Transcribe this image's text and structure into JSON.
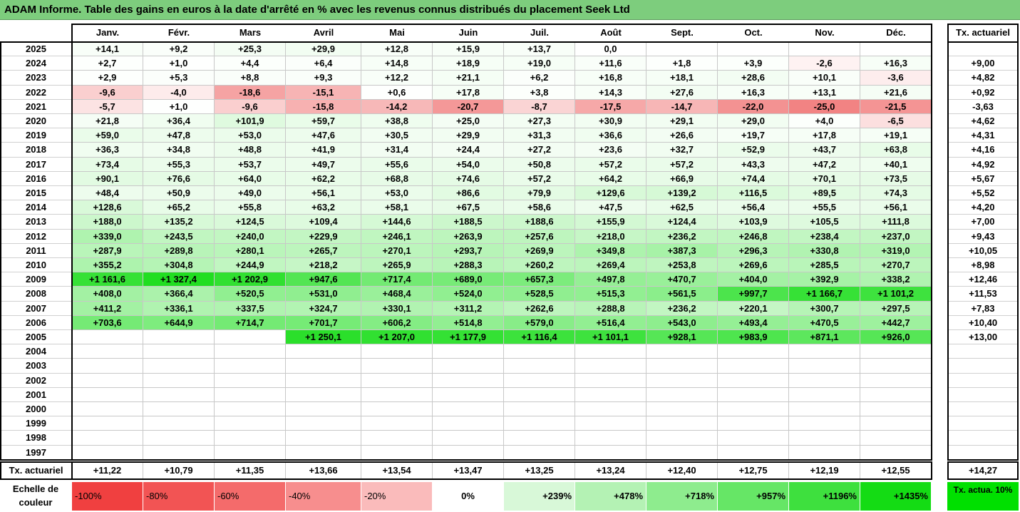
{
  "title": "ADAM Informe. Table des gains en euros à la date d'arrêté en % avec les revenus connus distribués du placement Seek Ltd",
  "months": [
    "Janv.",
    "Févr.",
    "Mars",
    "Avril",
    "Mai",
    "Juin",
    "Juil.",
    "Août",
    "Sept.",
    "Oct.",
    "Nov.",
    "Déc."
  ],
  "tx_header": "Tx. actuariel",
  "rows": [
    {
      "year": "2025",
      "values": [
        "+14,1",
        "+9,2",
        "+25,3",
        "+29,9",
        "+12,8",
        "+15,9",
        "+13,7",
        "0,0",
        "",
        "",
        "",
        ""
      ],
      "tx": ""
    },
    {
      "year": "2024",
      "values": [
        "+2,7",
        "+1,0",
        "+4,4",
        "+6,4",
        "+14,8",
        "+18,9",
        "+19,0",
        "+11,6",
        "+1,8",
        "+3,9",
        "-2,6",
        "+16,3"
      ],
      "tx": "+9,00"
    },
    {
      "year": "2023",
      "values": [
        "+2,9",
        "+5,3",
        "+8,8",
        "+9,3",
        "+12,2",
        "+21,1",
        "+6,2",
        "+16,8",
        "+18,1",
        "+28,6",
        "+10,1",
        "-3,6"
      ],
      "tx": "+4,82"
    },
    {
      "year": "2022",
      "values": [
        "-9,6",
        "-4,0",
        "-18,6",
        "-15,1",
        "+0,6",
        "+17,8",
        "+3,8",
        "+14,3",
        "+27,6",
        "+16,3",
        "+13,1",
        "+21,6"
      ],
      "tx": "+0,92"
    },
    {
      "year": "2021",
      "values": [
        "-5,7",
        "+1,0",
        "-9,6",
        "-15,8",
        "-14,2",
        "-20,7",
        "-8,7",
        "-17,5",
        "-14,7",
        "-22,0",
        "-25,0",
        "-21,5"
      ],
      "tx": "-3,63"
    },
    {
      "year": "2020",
      "values": [
        "+21,8",
        "+36,4",
        "+101,9",
        "+59,7",
        "+38,8",
        "+25,0",
        "+27,3",
        "+30,9",
        "+29,1",
        "+29,0",
        "+4,0",
        "-6,5"
      ],
      "tx": "+4,62"
    },
    {
      "year": "2019",
      "values": [
        "+59,0",
        "+47,8",
        "+53,0",
        "+47,6",
        "+30,5",
        "+29,9",
        "+31,3",
        "+36,6",
        "+26,6",
        "+19,7",
        "+17,8",
        "+19,1"
      ],
      "tx": "+4,31"
    },
    {
      "year": "2018",
      "values": [
        "+36,3",
        "+34,8",
        "+48,8",
        "+41,9",
        "+31,4",
        "+24,4",
        "+27,2",
        "+23,6",
        "+32,7",
        "+52,9",
        "+43,7",
        "+63,8"
      ],
      "tx": "+4,16"
    },
    {
      "year": "2017",
      "values": [
        "+73,4",
        "+55,3",
        "+53,7",
        "+49,7",
        "+55,6",
        "+54,0",
        "+50,8",
        "+57,2",
        "+57,2",
        "+43,3",
        "+47,2",
        "+40,1"
      ],
      "tx": "+4,92"
    },
    {
      "year": "2016",
      "values": [
        "+90,1",
        "+76,6",
        "+64,0",
        "+62,2",
        "+68,8",
        "+74,6",
        "+57,2",
        "+64,2",
        "+66,9",
        "+74,4",
        "+70,1",
        "+73,5"
      ],
      "tx": "+5,67"
    },
    {
      "year": "2015",
      "values": [
        "+48,4",
        "+50,9",
        "+49,0",
        "+56,1",
        "+53,0",
        "+86,6",
        "+79,9",
        "+129,6",
        "+139,2",
        "+116,5",
        "+89,5",
        "+74,3"
      ],
      "tx": "+5,52"
    },
    {
      "year": "2014",
      "values": [
        "+128,6",
        "+65,2",
        "+55,8",
        "+63,2",
        "+58,1",
        "+67,5",
        "+58,6",
        "+47,5",
        "+62,5",
        "+56,4",
        "+55,5",
        "+56,1"
      ],
      "tx": "+4,20"
    },
    {
      "year": "2013",
      "values": [
        "+188,0",
        "+135,2",
        "+124,5",
        "+109,4",
        "+144,6",
        "+188,5",
        "+188,6",
        "+155,9",
        "+124,4",
        "+103,9",
        "+105,5",
        "+111,8"
      ],
      "tx": "+7,00"
    },
    {
      "year": "2012",
      "values": [
        "+339,0",
        "+243,5",
        "+240,0",
        "+229,9",
        "+246,1",
        "+263,9",
        "+257,6",
        "+218,0",
        "+236,2",
        "+246,8",
        "+238,4",
        "+237,0"
      ],
      "tx": "+9,43"
    },
    {
      "year": "2011",
      "values": [
        "+287,9",
        "+289,8",
        "+280,1",
        "+265,7",
        "+270,1",
        "+293,7",
        "+269,9",
        "+349,8",
        "+387,3",
        "+296,3",
        "+330,8",
        "+319,0"
      ],
      "tx": "+10,05"
    },
    {
      "year": "2010",
      "values": [
        "+355,2",
        "+304,8",
        "+244,9",
        "+218,2",
        "+265,9",
        "+288,3",
        "+260,2",
        "+269,4",
        "+253,8",
        "+269,6",
        "+285,5",
        "+270,7"
      ],
      "tx": "+8,98"
    },
    {
      "year": "2009",
      "values": [
        "+1 161,6",
        "+1 327,4",
        "+1 202,9",
        "+947,6",
        "+717,4",
        "+689,0",
        "+657,3",
        "+497,8",
        "+470,7",
        "+404,0",
        "+392,9",
        "+338,2"
      ],
      "tx": "+12,46"
    },
    {
      "year": "2008",
      "values": [
        "+408,0",
        "+366,4",
        "+520,5",
        "+531,0",
        "+468,4",
        "+524,0",
        "+528,5",
        "+515,3",
        "+561,5",
        "+997,7",
        "+1 166,7",
        "+1 101,2"
      ],
      "tx": "+11,53"
    },
    {
      "year": "2007",
      "values": [
        "+411,2",
        "+336,1",
        "+337,5",
        "+324,7",
        "+330,1",
        "+311,2",
        "+262,6",
        "+288,8",
        "+236,2",
        "+220,1",
        "+300,7",
        "+297,5"
      ],
      "tx": "+7,83"
    },
    {
      "year": "2006",
      "values": [
        "+703,6",
        "+644,9",
        "+714,7",
        "+701,7",
        "+606,2",
        "+514,8",
        "+579,0",
        "+516,4",
        "+543,0",
        "+493,4",
        "+470,5",
        "+442,7"
      ],
      "tx": "+10,40"
    },
    {
      "year": "2005",
      "values": [
        "",
        "",
        "",
        "+1 250,1",
        "+1 207,0",
        "+1 177,9",
        "+1 116,4",
        "+1 101,1",
        "+928,1",
        "+983,9",
        "+871,1",
        "+926,0"
      ],
      "tx": "+13,00"
    },
    {
      "year": "2004",
      "values": [
        "",
        "",
        "",
        "",
        "",
        "",
        "",
        "",
        "",
        "",
        "",
        ""
      ],
      "tx": ""
    },
    {
      "year": "2003",
      "values": [
        "",
        "",
        "",
        "",
        "",
        "",
        "",
        "",
        "",
        "",
        "",
        ""
      ],
      "tx": ""
    },
    {
      "year": "2002",
      "values": [
        "",
        "",
        "",
        "",
        "",
        "",
        "",
        "",
        "",
        "",
        "",
        ""
      ],
      "tx": ""
    },
    {
      "year": "2001",
      "values": [
        "",
        "",
        "",
        "",
        "",
        "",
        "",
        "",
        "",
        "",
        "",
        ""
      ],
      "tx": ""
    },
    {
      "year": "2000",
      "values": [
        "",
        "",
        "",
        "",
        "",
        "",
        "",
        "",
        "",
        "",
        "",
        ""
      ],
      "tx": ""
    },
    {
      "year": "1999",
      "values": [
        "",
        "",
        "",
        "",
        "",
        "",
        "",
        "",
        "",
        "",
        "",
        ""
      ],
      "tx": ""
    },
    {
      "year": "1998",
      "values": [
        "",
        "",
        "",
        "",
        "",
        "",
        "",
        "",
        "",
        "",
        "",
        ""
      ],
      "tx": ""
    },
    {
      "year": "1997",
      "values": [
        "",
        "",
        "",
        "",
        "",
        "",
        "",
        "",
        "",
        "",
        "",
        ""
      ],
      "tx": ""
    }
  ],
  "footer": {
    "label": "Tx. actuariel",
    "values": [
      "+11,22",
      "+10,79",
      "+11,35",
      "+13,66",
      "+13,54",
      "+13,47",
      "+13,25",
      "+13,24",
      "+12,40",
      "+12,75",
      "+12,19",
      "+12,55"
    ],
    "total": "+14,27"
  },
  "legend": {
    "label": "Echelle de couleur",
    "items": [
      {
        "text": "-100%",
        "color": "#f04040",
        "align": "left"
      },
      {
        "text": "-80%",
        "color": "#f25454",
        "align": "left"
      },
      {
        "text": "-60%",
        "color": "#f46b6b",
        "align": "left"
      },
      {
        "text": "-40%",
        "color": "#f78e8e",
        "align": "left"
      },
      {
        "text": "-20%",
        "color": "#fabbbb",
        "align": "left"
      },
      {
        "text": "0%",
        "color": "#ffffff",
        "align": "center"
      },
      {
        "text": "+239%",
        "color": "#d8f8d8",
        "align": "right"
      },
      {
        "text": "+478%",
        "color": "#b4f2b4",
        "align": "right"
      },
      {
        "text": "+718%",
        "color": "#8eec8e",
        "align": "right"
      },
      {
        "text": "+957%",
        "color": "#66e666",
        "align": "right"
      },
      {
        "text": "+1196%",
        "color": "#3ee03e",
        "align": "right"
      },
      {
        "text": "+1435%",
        "color": "#14dc14",
        "align": "right"
      }
    ],
    "tx_label": "Tx. actua. 10%",
    "tx_color": "#00e000"
  }
}
